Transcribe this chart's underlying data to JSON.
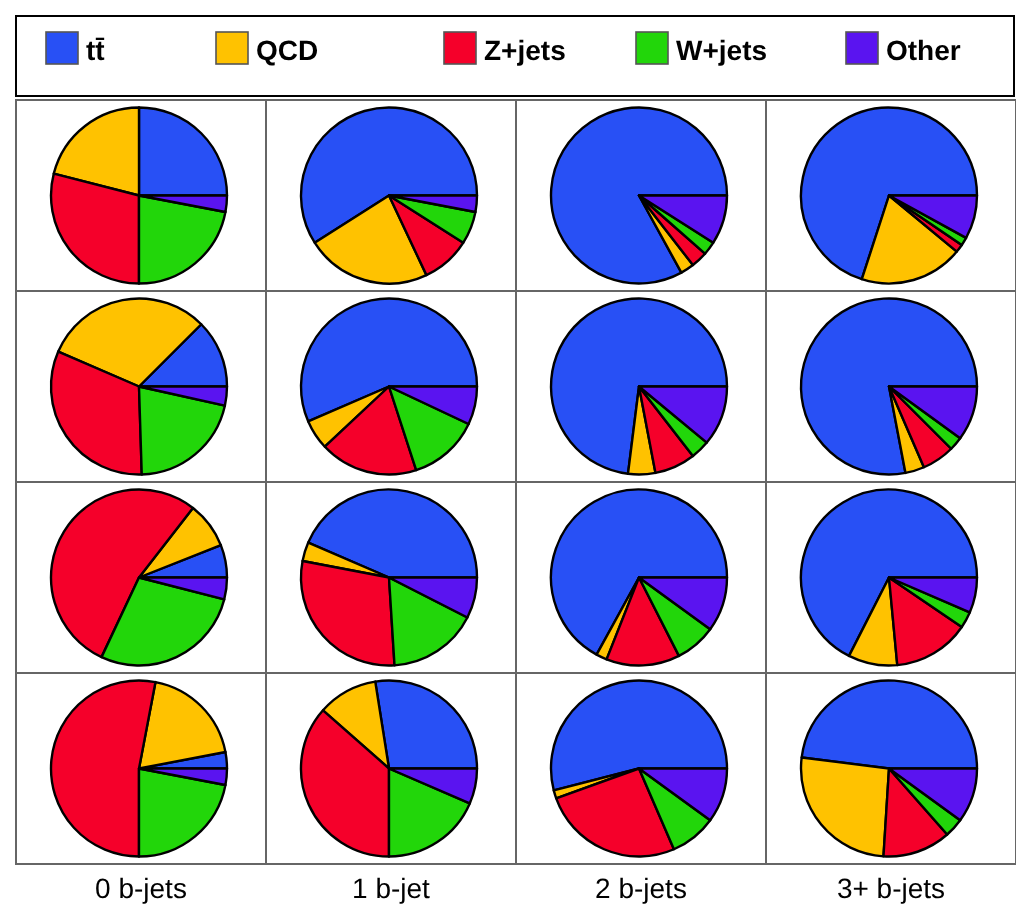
{
  "chart_data": [
    {
      "type": "pie",
      "categories": [
        "tt̄",
        "QCD",
        "Z+jets",
        "W+jets",
        "Other"
      ],
      "colors": [
        "#2850f5",
        "#ffc200",
        "#f5002a",
        "#22d60a",
        "#5a14f0"
      ],
      "legend": "top",
      "values": [
        25,
        21,
        29,
        22,
        3
      ]
    },
    {
      "type": "pie",
      "colors": [
        "#2850f5",
        "#ffc200",
        "#f5002a",
        "#22d60a",
        "#5a14f0"
      ],
      "values": [
        59,
        23,
        9,
        6,
        3
      ]
    },
    {
      "type": "pie",
      "colors": [
        "#2850f5",
        "#ffc200",
        "#f5002a",
        "#22d60a",
        "#5a14f0"
      ],
      "values": [
        83,
        2.5,
        3,
        2.5,
        9
      ]
    },
    {
      "type": "pie",
      "colors": [
        "#2850f5",
        "#ffc200",
        "#f5002a",
        "#22d60a",
        "#5a14f0"
      ],
      "values": [
        70,
        19,
        1.5,
        1.5,
        8
      ]
    },
    {
      "type": "pie",
      "colors": [
        "#2850f5",
        "#ffc200",
        "#f5002a",
        "#22d60a",
        "#5a14f0"
      ],
      "values": [
        12.5,
        31,
        32,
        21,
        3.5
      ]
    },
    {
      "type": "pie",
      "colors": [
        "#2850f5",
        "#ffc200",
        "#f5002a",
        "#22d60a",
        "#5a14f0"
      ],
      "values": [
        56.5,
        5.5,
        18,
        13,
        7
      ]
    },
    {
      "type": "pie",
      "colors": [
        "#2850f5",
        "#ffc200",
        "#f5002a",
        "#22d60a",
        "#5a14f0"
      ],
      "values": [
        73,
        5,
        7.5,
        3.5,
        11
      ]
    },
    {
      "type": "pie",
      "colors": [
        "#2850f5",
        "#ffc200",
        "#f5002a",
        "#22d60a",
        "#5a14f0"
      ],
      "values": [
        78,
        3.5,
        6,
        2.5,
        10
      ]
    },
    {
      "type": "pie",
      "colors": [
        "#2850f5",
        "#ffc200",
        "#f5002a",
        "#22d60a",
        "#5a14f0"
      ],
      "values": [
        6,
        8.5,
        53.5,
        28,
        4
      ]
    },
    {
      "type": "pie",
      "colors": [
        "#2850f5",
        "#ffc200",
        "#f5002a",
        "#22d60a",
        "#5a14f0"
      ],
      "values": [
        43.5,
        3.5,
        29,
        16.5,
        7.5
      ]
    },
    {
      "type": "pie",
      "colors": [
        "#2850f5",
        "#ffc200",
        "#f5002a",
        "#22d60a",
        "#5a14f0"
      ],
      "values": [
        67,
        2,
        13.5,
        7.5,
        10
      ]
    },
    {
      "type": "pie",
      "colors": [
        "#2850f5",
        "#ffc200",
        "#f5002a",
        "#22d60a",
        "#5a14f0"
      ],
      "values": [
        67.5,
        9,
        14,
        3,
        6.5
      ]
    },
    {
      "type": "pie",
      "colors": [
        "#2850f5",
        "#ffc200",
        "#f5002a",
        "#22d60a",
        "#5a14f0"
      ],
      "values": [
        3,
        19,
        53,
        22,
        3
      ],
      "xlabel": "0 b-jets"
    },
    {
      "type": "pie",
      "colors": [
        "#2850f5",
        "#ffc200",
        "#f5002a",
        "#22d60a",
        "#5a14f0"
      ],
      "values": [
        27.5,
        11,
        36.5,
        18.5,
        6.5
      ],
      "xlabel": "1 b-jet"
    },
    {
      "type": "pie",
      "colors": [
        "#2850f5",
        "#ffc200",
        "#f5002a",
        "#22d60a",
        "#5a14f0"
      ],
      "values": [
        54,
        1.5,
        26,
        8.5,
        10
      ],
      "xlabel": "2 b-jets"
    },
    {
      "type": "pie",
      "colors": [
        "#2850f5",
        "#ffc200",
        "#f5002a",
        "#22d60a",
        "#5a14f0"
      ],
      "values": [
        48,
        26,
        12.5,
        3.5,
        10
      ],
      "xlabel": "3+ b-jets"
    }
  ]
}
